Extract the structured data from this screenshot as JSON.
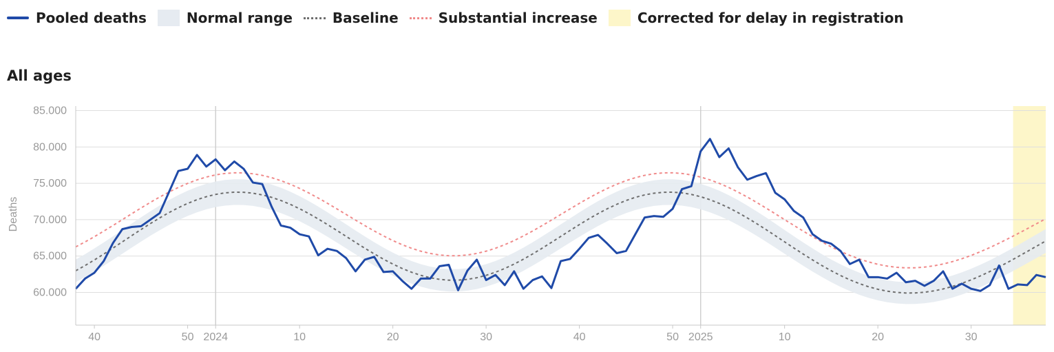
{
  "legend": [
    {
      "label": "Pooled deaths",
      "kind": "line",
      "color": "#1f4aa8"
    },
    {
      "label": "Normal range",
      "kind": "band",
      "color": "#e6ebf1"
    },
    {
      "label": "Baseline",
      "kind": "dash",
      "color": "#6e6e6e"
    },
    {
      "label": "Substantial increase",
      "kind": "dash",
      "color": "#f08a8a"
    },
    {
      "label": "Corrected for delay in registration",
      "kind": "box",
      "color": "#fdf6c9"
    }
  ],
  "chart_data": {
    "type": "line",
    "title": "All ages",
    "ylabel": "Deaths",
    "ylim": [
      55500,
      86000
    ],
    "yticks": [
      60000,
      65000,
      70000,
      75000,
      80000,
      85000
    ],
    "ytick_labels": [
      "60.000",
      "65.000",
      "70.000",
      "75.000",
      "80.000",
      "85.000"
    ],
    "x_start": {
      "year": 2023,
      "week": 38
    },
    "x_end": {
      "year": 2025,
      "week": 38
    },
    "xticks": [
      {
        "label": "40",
        "year": 2023,
        "week": 40
      },
      {
        "label": "50",
        "year": 2023,
        "week": 50
      },
      {
        "label": "2024",
        "year": 2024,
        "week": 1
      },
      {
        "label": "10",
        "year": 2024,
        "week": 10
      },
      {
        "label": "20",
        "year": 2024,
        "week": 20
      },
      {
        "label": "30",
        "year": 2024,
        "week": 30
      },
      {
        "label": "40",
        "year": 2024,
        "week": 40
      },
      {
        "label": "50",
        "year": 2024,
        "week": 50
      },
      {
        "label": "2025",
        "year": 2025,
        "week": 1
      },
      {
        "label": "10",
        "year": 2025,
        "week": 10
      },
      {
        "label": "20",
        "year": 2025,
        "week": 20
      },
      {
        "label": "30",
        "year": 2025,
        "week": 30
      }
    ],
    "year_lines": [
      {
        "year": 2024,
        "week": 1
      },
      {
        "year": 2025,
        "week": 1
      }
    ],
    "corrected_from": {
      "year": 2025,
      "week": 35
    },
    "grid": true,
    "legend_position": "top",
    "pooled_deaths": [
      60500,
      61900,
      62700,
      64300,
      66800,
      68700,
      69000,
      69100,
      70000,
      70900,
      73800,
      76700,
      77000,
      78900,
      77300,
      78300,
      76800,
      78000,
      77000,
      75100,
      74900,
      71800,
      69200,
      68900,
      68000,
      67700,
      65100,
      66000,
      65700,
      64700,
      62900,
      64500,
      64900,
      62800,
      62900,
      61600,
      60500,
      61900,
      61900,
      63600,
      63800,
      60300,
      63000,
      64500,
      61700,
      62400,
      61000,
      62900,
      60500,
      61700,
      62200,
      60600,
      64300,
      64600,
      66000,
      67500,
      67900,
      66700,
      65400,
      65700,
      68000,
      70300,
      70500,
      70400,
      71500,
      74200,
      74600,
      79400,
      81100,
      78600,
      79800,
      77200,
      75500,
      76000,
      76400,
      73700,
      72800,
      71200,
      70300,
      68000,
      67100,
      66700,
      65700,
      63900,
      64500,
      62100,
      62100,
      61900,
      62700,
      61400,
      61600,
      60900,
      61600,
      62900,
      60500,
      61200,
      60500,
      60200,
      61000,
      63700,
      60500,
      61100,
      61000,
      62400,
      62100
    ],
    "baseline": [
      62978,
      63696,
      64463,
      65269,
      66103,
      66952,
      67804,
      68646,
      69464,
      70245,
      70976,
      71644,
      72238,
      72747,
      73162,
      73476,
      73684,
      73781,
      73767,
      73642,
      73409,
      73072,
      72637,
      72112,
      71507,
      70832,
      70100,
      69324,
      68518,
      67698,
      66878,
      66073,
      65298,
      64568,
      63895,
      63294,
      62774,
      62346,
      62018,
      61795,
      61682,
      61682,
      61795,
      62018,
      62346,
      62774,
      63294,
      63895,
      64568,
      65298,
      66073,
      66878,
      67698,
      68518,
      69324,
      70100,
      70832,
      71507,
      72112,
      72637,
      73072,
      73409,
      73642,
      73767,
      73781,
      73684,
      73476,
      73162,
      72747,
      72238,
      71644,
      70976,
      70245,
      69464,
      68646,
      67804,
      66952,
      66103,
      65269,
      64463,
      63696,
      62978,
      62320,
      61730,
      61215,
      60781,
      60432,
      60171,
      60000,
      59919,
      59928,
      60025,
      60209,
      60476,
      60822,
      61241,
      61727,
      62273,
      62871,
      63513,
      64190,
      64894,
      65615,
      66344,
      67072
    ],
    "band_upper": [
      64528,
      65261,
      66045,
      66868,
      67720,
      68587,
      69458,
      70318,
      71153,
      71951,
      72698,
      73380,
      73987,
      74507,
      74931,
      75252,
      75464,
      75563,
      75549,
      75421,
      75183,
      74839,
      74394,
      73858,
      73240,
      72551,
      71803,
      71011,
      70187,
      69349,
      68512,
      67690,
      66898,
      66152,
      65465,
      64850,
      64319,
      63882,
      63547,
      63319,
      63204,
      63204,
      63319,
      63547,
      63882,
      64319,
      64850,
      65465,
      66152,
      66898,
      67690,
      68512,
      69349,
      70187,
      71011,
      71803,
      72551,
      73240,
      73858,
      74394,
      74839,
      75183,
      75421,
      75549,
      75563,
      75464,
      75252,
      74931,
      74507,
      73987,
      73380,
      72698,
      71951,
      71153,
      70318,
      69458,
      68587,
      67720,
      66868,
      66045,
      65261,
      64528,
      63856,
      63253,
      62727,
      62284,
      61928,
      61661,
      61486,
      61403,
      61413,
      61512,
      61700,
      61973,
      62326,
      62754,
      63250,
      63808,
      64419,
      65075,
      65767,
      66486,
      67222,
      67967,
      68711
    ],
    "band_lower": [
      61409,
      62115,
      62868,
      63661,
      64481,
      65316,
      66153,
      66981,
      67785,
      68553,
      69272,
      69929,
      70513,
      71013,
      71421,
      71730,
      71934,
      72030,
      72016,
      71893,
      71664,
      71333,
      70905,
      70389,
      69794,
      69131,
      68411,
      67648,
      66855,
      66050,
      65243,
      64452,
      63690,
      62972,
      62310,
      61720,
      61208,
      60788,
      60466,
      60246,
      60135,
      60135,
      60246,
      60466,
      60788,
      61208,
      61720,
      62310,
      62972,
      63690,
      64452,
      65243,
      66050,
      66855,
      67648,
      68411,
      69131,
      69794,
      70389,
      70905,
      71333,
      71664,
      71893,
      72016,
      72030,
      71934,
      71730,
      71421,
      71013,
      70513,
      69929,
      69272,
      68553,
      67785,
      66981,
      66153,
      65316,
      64481,
      63661,
      62868,
      62115,
      61409,
      60762,
      60183,
      59676,
      59250,
      58907,
      58650,
      58482,
      58402,
      58412,
      58507,
      58688,
      58951,
      59291,
      59702,
      60180,
      60717,
      61305,
      61936,
      62601,
      63293,
      64001,
      64718,
      65434
    ],
    "substantial_increase": [
      66264,
      66941,
      67664,
      68424,
      69210,
      70010,
      70813,
      71607,
      72378,
      73114,
      73803,
      74433,
      74993,
      75473,
      75864,
      76160,
      76356,
      76447,
      76434,
      76317,
      76097,
      75779,
      75369,
      74874,
      74304,
      73667,
      72978,
      72246,
      71486,
      70713,
      69940,
      69182,
      68451,
      67763,
      67128,
      66562,
      66072,
      65668,
      65359,
      65149,
      65043,
      65043,
      65149,
      65359,
      65668,
      66072,
      66562,
      67128,
      67763,
      68451,
      69182,
      69940,
      70713,
      71486,
      72246,
      72978,
      73667,
      74304,
      74874,
      75369,
      75779,
      76097,
      76317,
      76434,
      76447,
      76356,
      76160,
      75864,
      75473,
      74993,
      74433,
      73803,
      73114,
      72378,
      71607,
      70813,
      70010,
      69210,
      68424,
      67664,
      66941,
      66264,
      65644,
      65088,
      64603,
      64194,
      63865,
      63619,
      63458,
      63381,
      63390,
      63481,
      63655,
      63907,
      64233,
      64628,
      65086,
      65600,
      66165,
      66770,
      67408,
      68072,
      68751,
      69439,
      70125
    ]
  }
}
